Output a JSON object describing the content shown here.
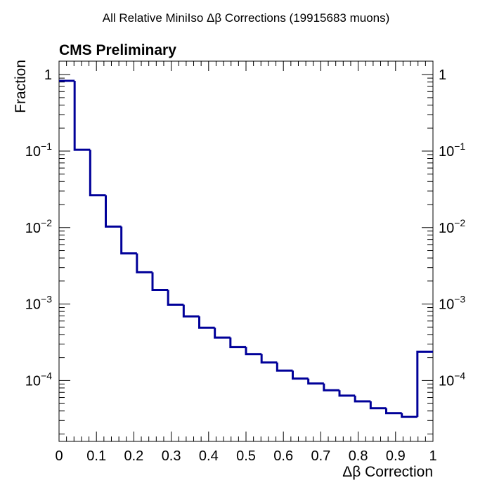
{
  "chart_data": {
    "type": "histogram",
    "title": "All Relative MiniIso Δβ Corrections (19915683 muons)",
    "annotation": "CMS Preliminary",
    "xlabel": "Δβ Correction",
    "ylabel": "Fraction",
    "xlim": [
      0,
      1
    ],
    "ylim": [
      1.6e-05,
      1.5
    ],
    "y_scale": "log",
    "grid": false,
    "line_color": "#000099",
    "bins": {
      "edges": [
        0,
        0.04167,
        0.08333,
        0.125,
        0.16667,
        0.20833,
        0.25,
        0.29167,
        0.33333,
        0.375,
        0.41667,
        0.45833,
        0.5,
        0.54167,
        0.58333,
        0.625,
        0.66667,
        0.70833,
        0.75,
        0.79167,
        0.83333,
        0.875,
        0.91667,
        0.95833,
        1.0
      ],
      "values": [
        0.83,
        0.104,
        0.0265,
        0.0103,
        0.0046,
        0.0026,
        0.00153,
        0.00098,
        0.00069,
        0.00049,
        0.000365,
        0.000275,
        0.000222,
        0.000172,
        0.000135,
        0.000106,
        9.15e-05,
        7.45e-05,
        6.35e-05,
        5.35e-05,
        4.35e-05,
        3.75e-05,
        3.35e-05,
        0.000238
      ]
    },
    "x_ticks": [
      "0",
      "0.1",
      "0.2",
      "0.3",
      "0.4",
      "0.5",
      "0.6",
      "0.7",
      "0.8",
      "0.9",
      "1"
    ],
    "y_ticks": [
      {
        "value": 1,
        "label": "1",
        "exp": ""
      },
      {
        "value": 0.1,
        "label": "10",
        "exp": "−1"
      },
      {
        "value": 0.01,
        "label": "10",
        "exp": "−2"
      },
      {
        "value": 0.001,
        "label": "10",
        "exp": "−3"
      },
      {
        "value": 0.0001,
        "label": "10",
        "exp": "−4"
      }
    ]
  }
}
